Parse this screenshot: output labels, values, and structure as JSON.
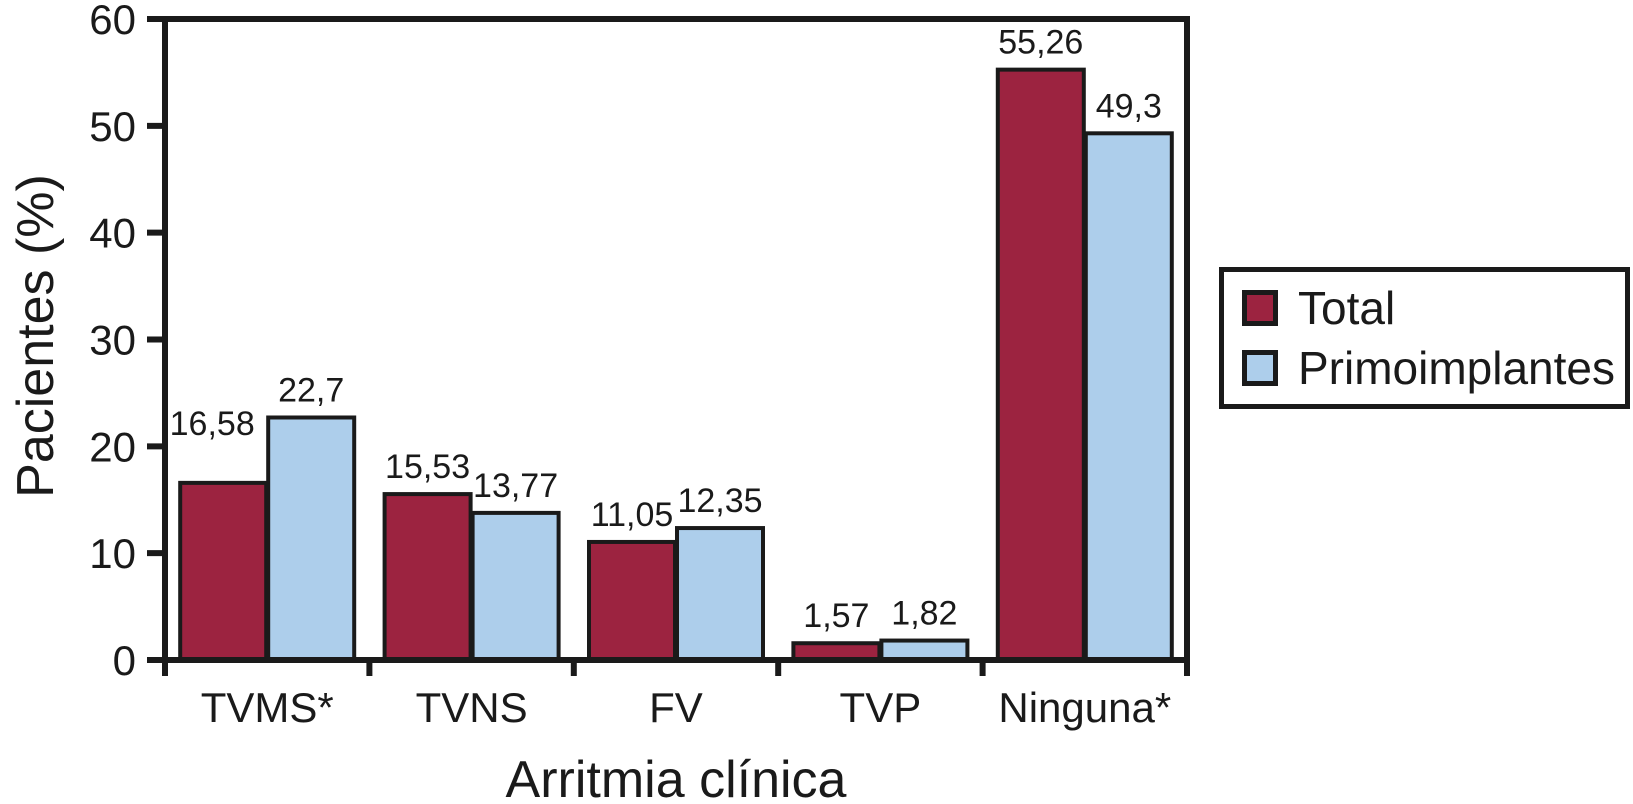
{
  "chart_data": {
    "type": "bar",
    "title": "",
    "xlabel": "Arritmia clínica",
    "ylabel": "Pacientes (%)",
    "categories": [
      "TVMS*",
      "TVNS",
      "FV",
      "TVP",
      "Ninguna*"
    ],
    "series": [
      {
        "name": "Total",
        "color": "#9C2340",
        "values": [
          16.58,
          15.53,
          11.05,
          1.57,
          55.26
        ],
        "value_labels": [
          "16,58",
          "15,53",
          "11,05",
          "1,57",
          "55,26"
        ]
      },
      {
        "name": "Primoimplantes",
        "color": "#ADCEEB",
        "values": [
          22.7,
          13.77,
          12.35,
          1.82,
          49.3
        ],
        "value_labels": [
          "22,7",
          "13,77",
          "12,35",
          "1,82",
          "49,3"
        ]
      }
    ],
    "ylim": [
      0,
      60
    ],
    "yticks": [
      0,
      10,
      20,
      30,
      40,
      50,
      60
    ],
    "grid": false,
    "legend_position": "right",
    "axis_color": "#1a1a1a",
    "bar_outline_color": "#1a1a1a"
  }
}
